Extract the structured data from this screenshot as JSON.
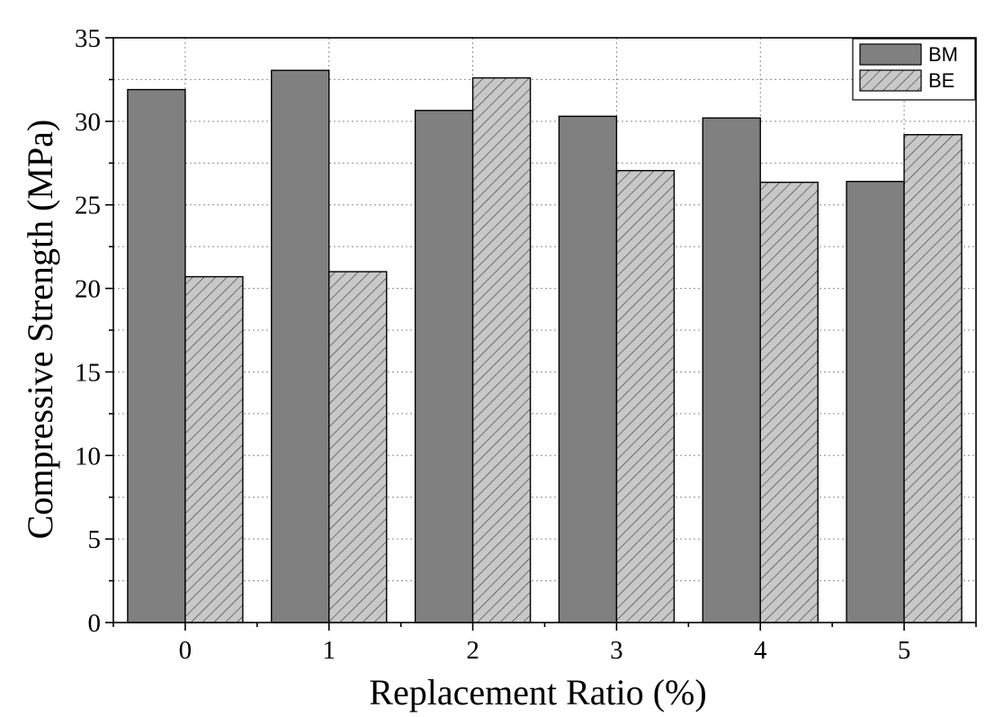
{
  "chart_data": {
    "type": "bar",
    "categories": [
      "0",
      "1",
      "2",
      "3",
      "4",
      "5"
    ],
    "series": [
      {
        "name": "BM",
        "values": [
          31.9,
          33.05,
          30.65,
          30.3,
          30.2,
          26.4
        ],
        "color": "#808080",
        "pattern": "solid"
      },
      {
        "name": "BE",
        "values": [
          20.7,
          21.0,
          32.6,
          27.05,
          26.35,
          29.2
        ],
        "color": "#c8c8c8",
        "pattern": "hatched"
      }
    ],
    "title": "",
    "xlabel": "Replacement Ratio (%)",
    "ylabel": "Compressive Strength (MPa)",
    "ylim": [
      0,
      35
    ],
    "yticks": [
      0,
      5,
      10,
      15,
      20,
      25,
      30,
      35
    ],
    "grid": true,
    "legend_position": "top-right"
  }
}
